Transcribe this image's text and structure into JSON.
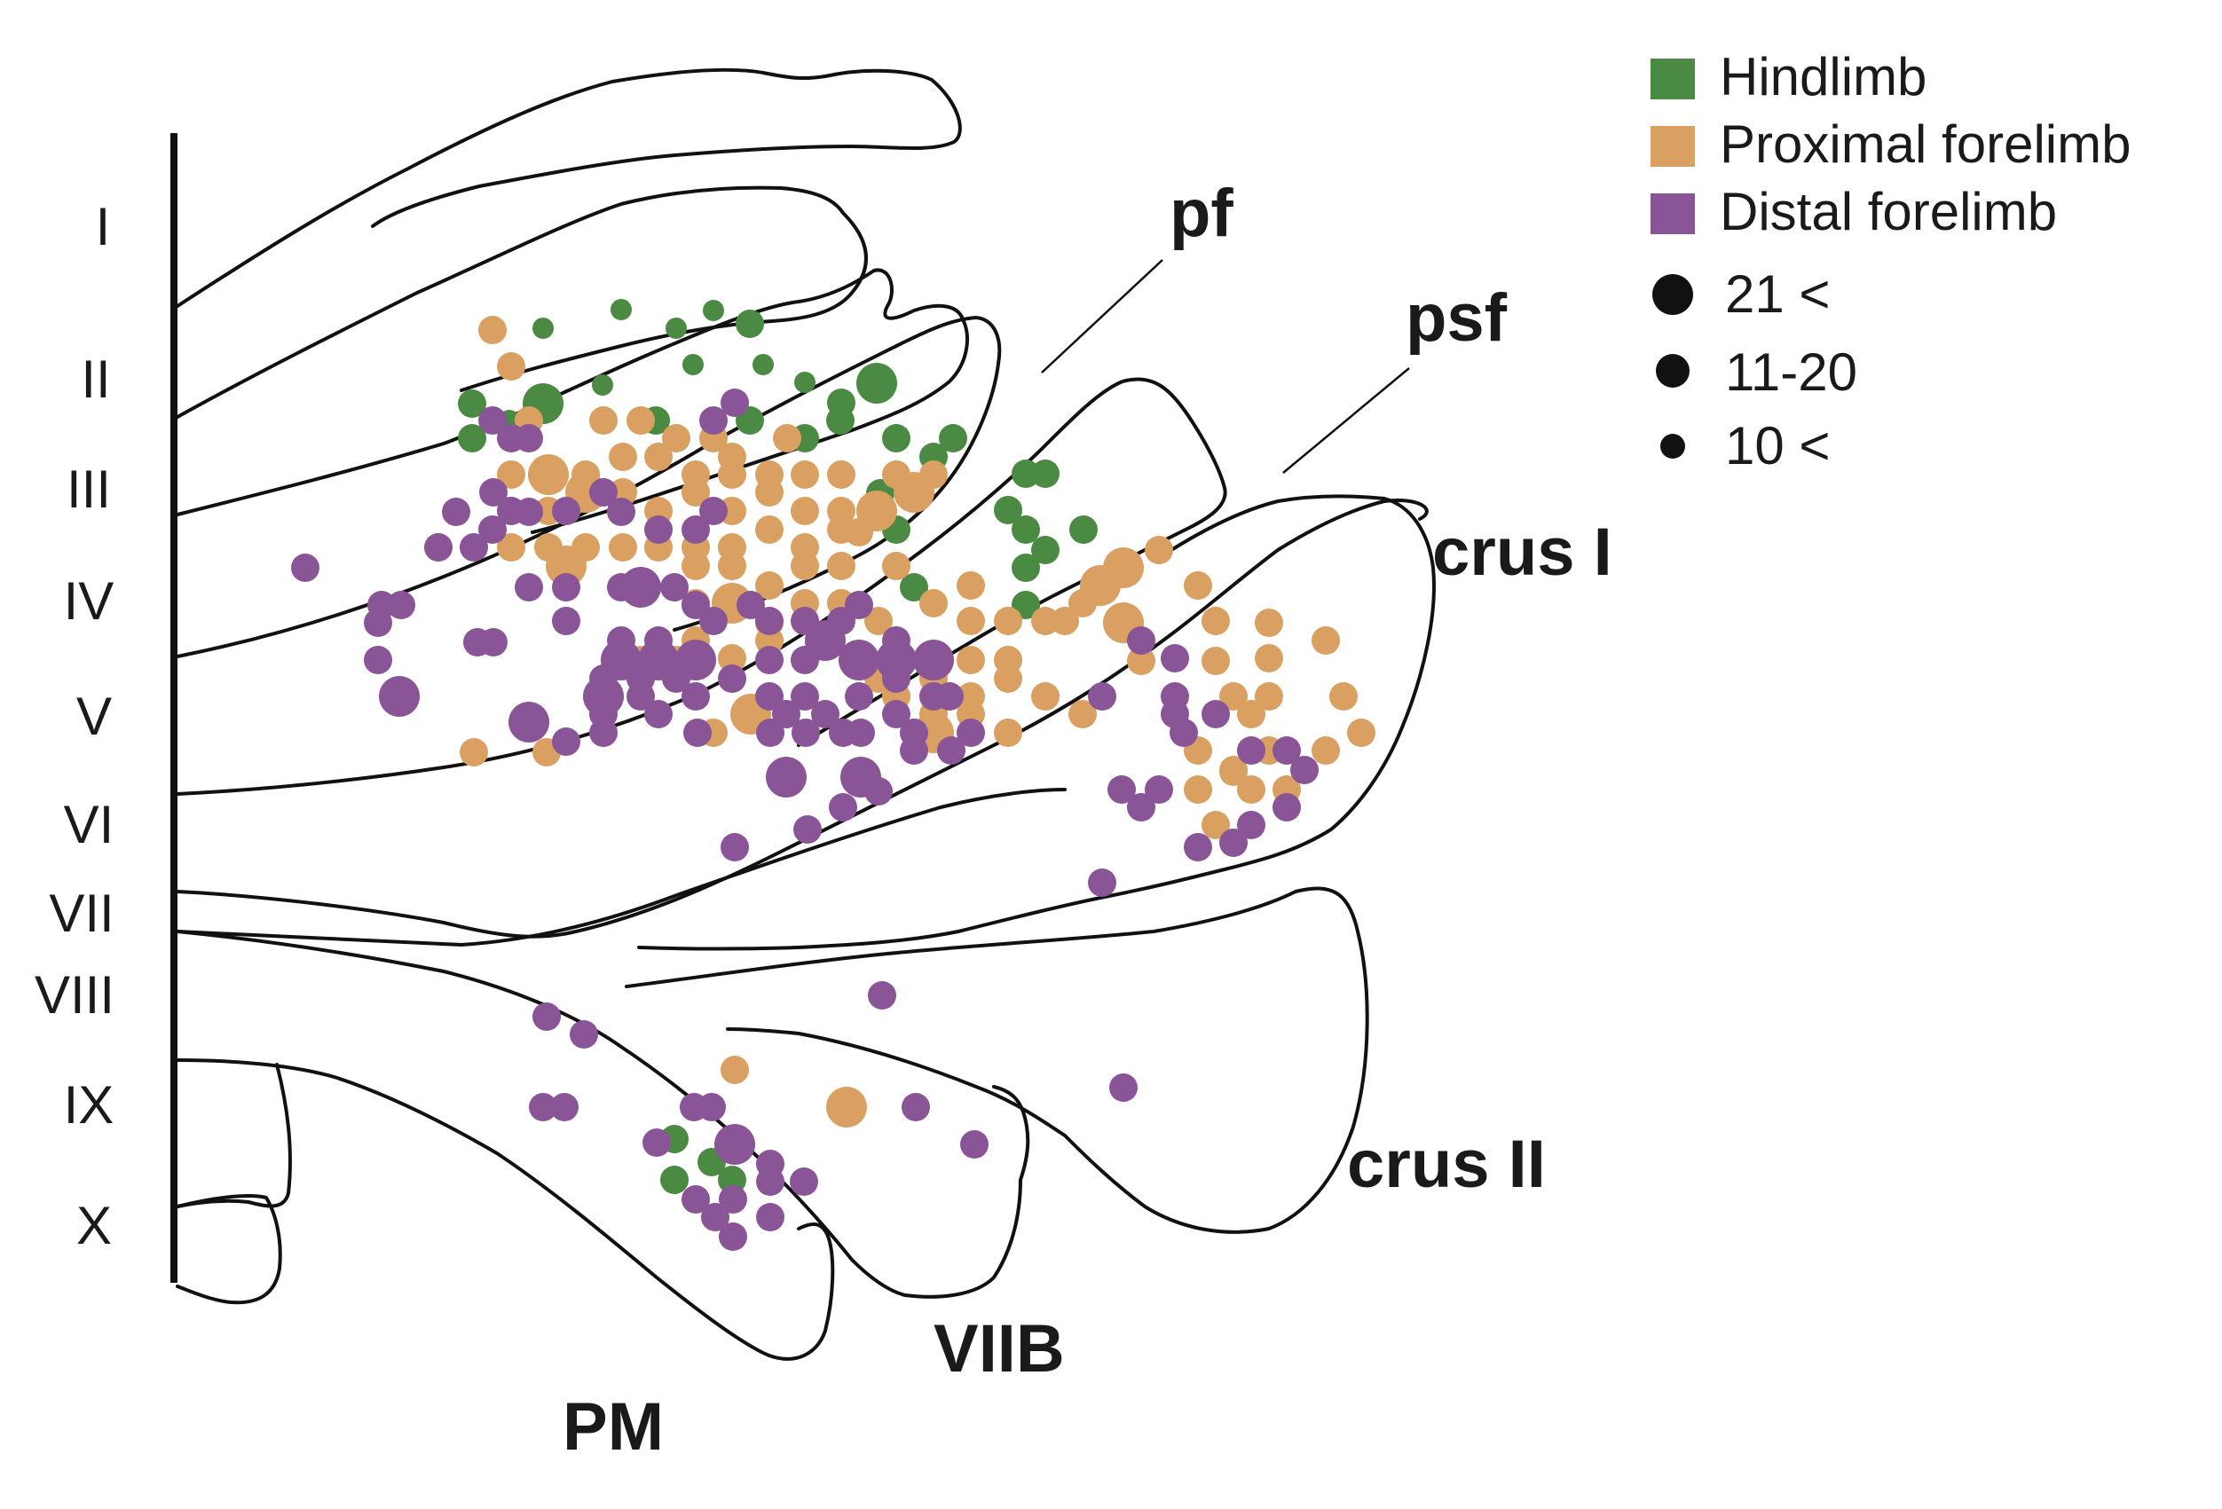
{
  "lobules": [
    "I",
    "II",
    "III",
    "IV",
    "V",
    "VI",
    "VII",
    "VIII",
    "IX",
    "X"
  ],
  "regions": {
    "pf": "pf",
    "psf": "psf",
    "crus1": "crus I",
    "crus2": "crus II",
    "viib": "VIIB",
    "pm": "PM"
  },
  "legend": {
    "categories": [
      {
        "key": "hindlimb",
        "label": "Hindlimb",
        "color": "#4a8a42"
      },
      {
        "key": "proximal",
        "label": "Proximal forelimb",
        "color": "#d9a062"
      },
      {
        "key": "distal",
        "label": "Distal forelimb",
        "color": "#8a5597"
      }
    ],
    "sizes": [
      {
        "label": "21 <",
        "class": "large"
      },
      {
        "label": "11-20",
        "class": "medium"
      },
      {
        "label": "10 <",
        "class": "small"
      }
    ]
  }
}
